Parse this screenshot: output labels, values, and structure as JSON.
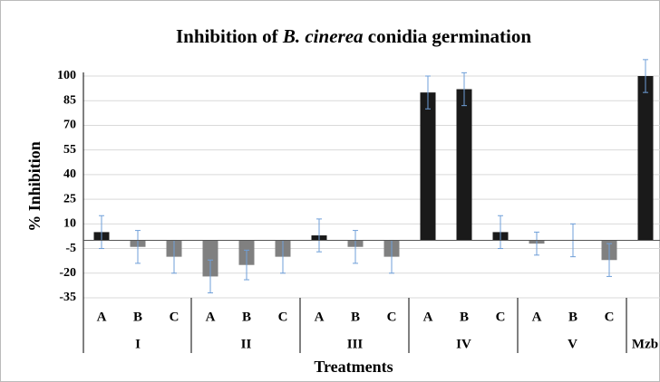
{
  "chart_data": {
    "type": "bar",
    "title": [
      "Inhibition of ",
      "B. cinerea",
      " conidia germination"
    ],
    "ylabel": "% Inhibition",
    "xlabel": "Treatments",
    "categories": [
      "A",
      "B",
      "C",
      "A",
      "B",
      "C",
      "A",
      "B",
      "C",
      "A",
      "B",
      "C",
      "A",
      "B",
      "C",
      null
    ],
    "group_labels": [
      "I",
      "II",
      "III",
      "IV",
      "V",
      "Mzb"
    ],
    "group_sizes": [
      3,
      3,
      3,
      3,
      3,
      1
    ],
    "values": [
      5,
      -4,
      -10,
      -22,
      -15,
      -10,
      3,
      -4,
      -10,
      90,
      92,
      5,
      -2,
      0,
      -12,
      100
    ],
    "errors": [
      10,
      10,
      10,
      10,
      9,
      10,
      10,
      10,
      10,
      10,
      10,
      10,
      7,
      10,
      10,
      10
    ],
    "colors": [
      "#1a1a1a",
      "#808080",
      "#808080",
      "#808080",
      "#808080",
      "#808080",
      "#1a1a1a",
      "#808080",
      "#808080",
      "#1a1a1a",
      "#1a1a1a",
      "#1a1a1a",
      "#808080",
      "#808080",
      "#808080",
      "#1a1a1a"
    ],
    "error_color": "#6f9fd8",
    "ylim": [
      -35,
      100
    ],
    "yticks": [
      -35,
      -20,
      -5,
      10,
      25,
      40,
      55,
      70,
      85,
      100
    ],
    "grid": true
  }
}
